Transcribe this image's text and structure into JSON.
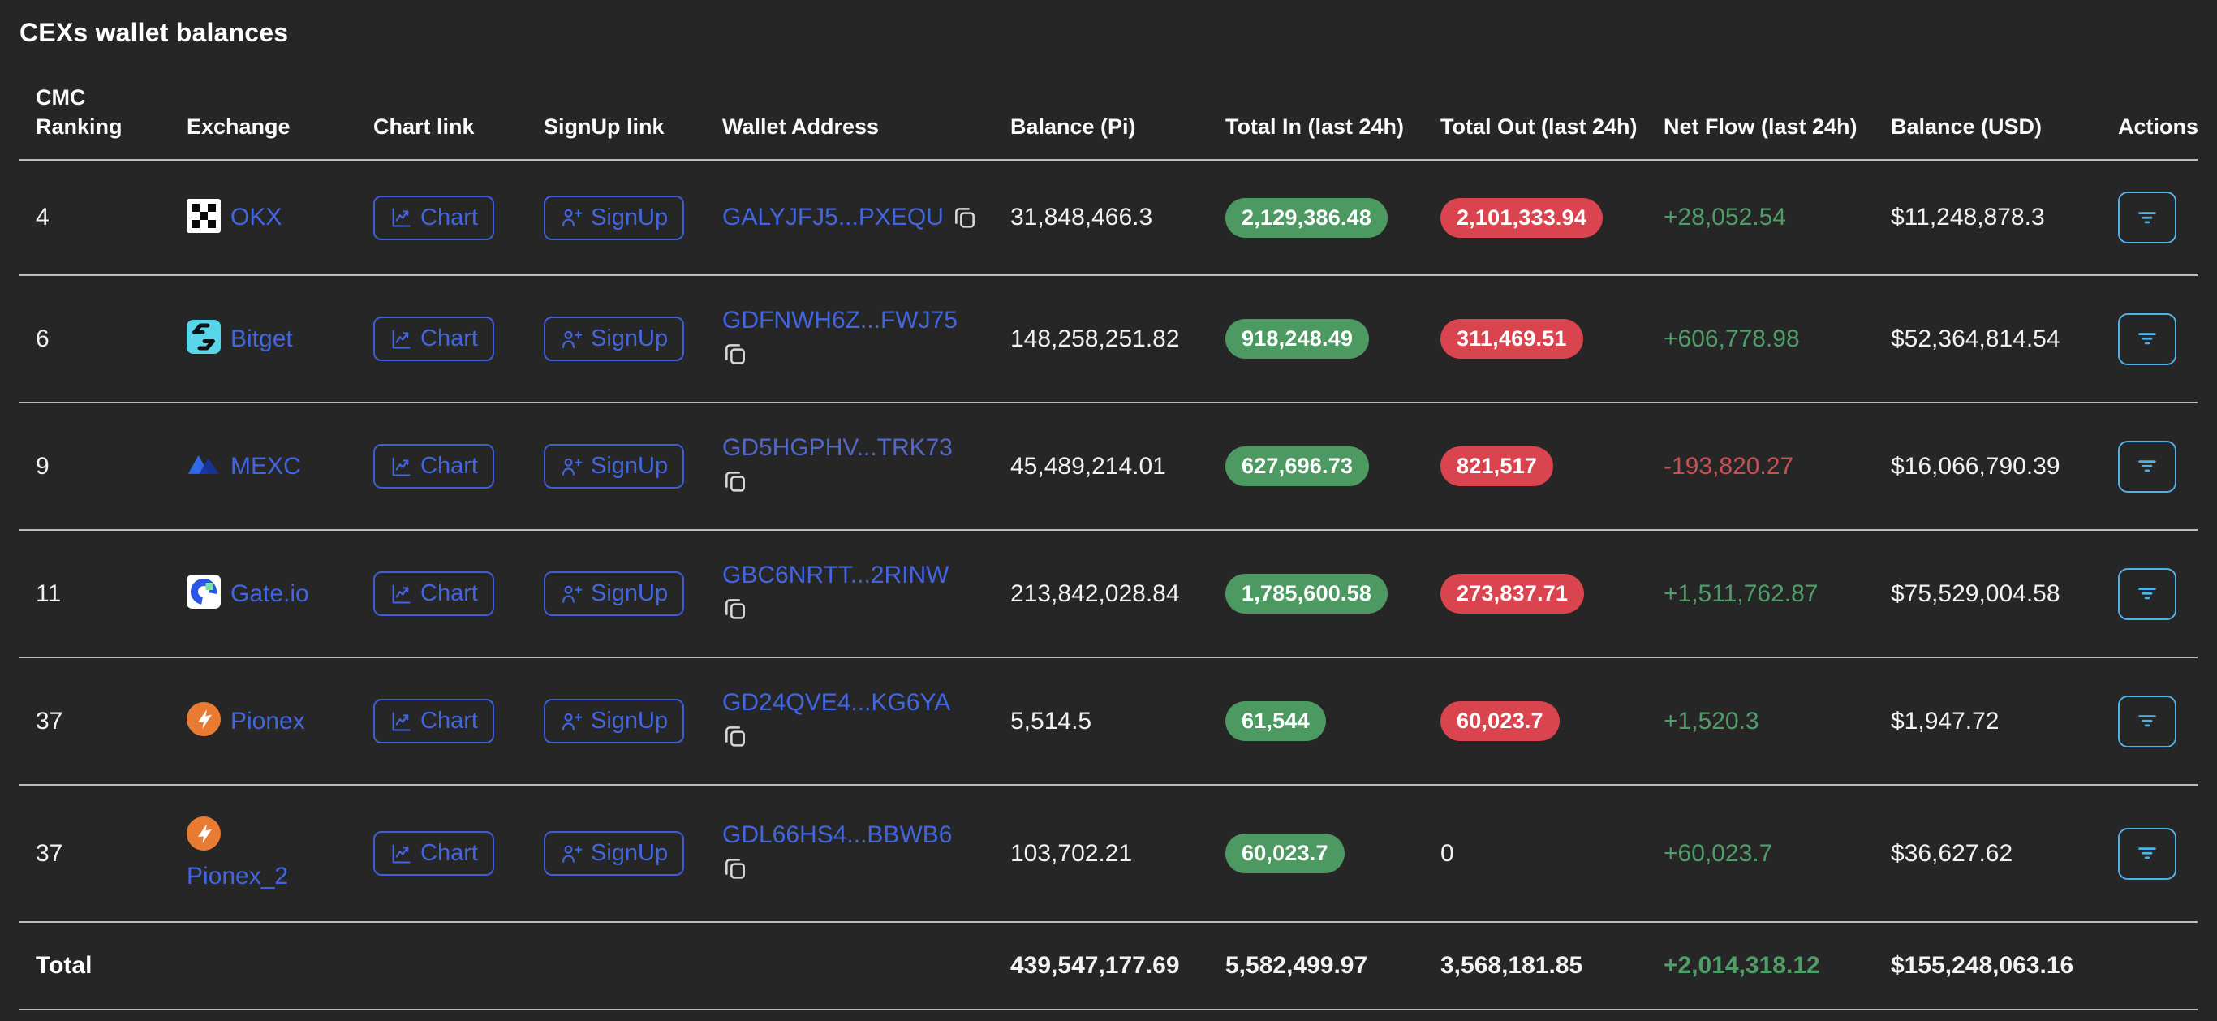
{
  "page": {
    "title": "CEXs wallet balances"
  },
  "colors": {
    "background": "#262626",
    "link_blue": "#4166e0",
    "badge_green": "#4c9a62",
    "badge_red": "#d9444e",
    "netflow_green": "#4f9e68",
    "netflow_red": "#c75055",
    "actions_border_blue": "#4fb3ea",
    "row_separator": "#bdbdbd"
  },
  "table": {
    "columns": [
      {
        "key": "ranking",
        "label": "CMC Ranking"
      },
      {
        "key": "exchange",
        "label": "Exchange"
      },
      {
        "key": "chart",
        "label": "Chart link"
      },
      {
        "key": "signup",
        "label": "SignUp link"
      },
      {
        "key": "wallet",
        "label": "Wallet Address"
      },
      {
        "key": "balance_pi",
        "label": "Balance (Pi)"
      },
      {
        "key": "total_in",
        "label": "Total In (last 24h)"
      },
      {
        "key": "total_out",
        "label": "Total Out (last 24h)"
      },
      {
        "key": "net_flow",
        "label": "Net Flow (last 24h)"
      },
      {
        "key": "balance_usd",
        "label": "Balance (USD)"
      },
      {
        "key": "actions",
        "label": "Actions"
      }
    ],
    "buttons": {
      "chart_label": "Chart",
      "signup_label": "SignUp"
    },
    "icons": {
      "chart_button": "line-chart-icon",
      "signup_button": "user-plus-icon",
      "wallet": "copy-icon",
      "actions": "filter-icon"
    },
    "rows": [
      {
        "ranking": "4",
        "exchange": "OKX",
        "logo": "okx",
        "wallet": "GALYJFJ5...PXEQU",
        "copy_inline": true,
        "balance_pi": "31,848,466.3",
        "total_in": "2,129,386.48",
        "total_out": "2,101,333.94",
        "total_out_badge": true,
        "net_flow": "+28,052.54",
        "net_flow_dir": "up",
        "balance_usd": "$11,248,878.3"
      },
      {
        "ranking": "6",
        "exchange": "Bitget",
        "logo": "bitget",
        "wallet": "GDFNWH6Z...FWJ75",
        "copy_inline": false,
        "balance_pi": "148,258,251.82",
        "total_in": "918,248.49",
        "total_out": "311,469.51",
        "total_out_badge": true,
        "net_flow": "+606,778.98",
        "net_flow_dir": "up",
        "balance_usd": "$52,364,814.54"
      },
      {
        "ranking": "9",
        "exchange": "MEXC",
        "logo": "mexc",
        "wallet": "GD5HGPHV...TRK73",
        "copy_inline": false,
        "wallet_muted": true,
        "balance_pi": "45,489,214.01",
        "total_in": "627,696.73",
        "total_out": "821,517",
        "total_out_badge": true,
        "net_flow": "-193,820.27",
        "net_flow_dir": "down",
        "balance_usd": "$16,066,790.39"
      },
      {
        "ranking": "11",
        "exchange": "Gate.io",
        "logo": "gateio",
        "wallet": "GBC6NRTT...2RINW",
        "copy_inline": false,
        "balance_pi": "213,842,028.84",
        "total_in": "1,785,600.58",
        "total_out": "273,837.71",
        "total_out_badge": true,
        "net_flow": "+1,511,762.87",
        "net_flow_dir": "up",
        "balance_usd": "$75,529,004.58"
      },
      {
        "ranking": "37",
        "exchange": "Pionex",
        "logo": "pionex",
        "wallet": "GD24QVE4...KG6YA",
        "copy_inline": false,
        "balance_pi": "5,514.5",
        "total_in": "61,544",
        "total_out": "60,023.7",
        "total_out_badge": true,
        "net_flow": "+1,520.3",
        "net_flow_dir": "up",
        "balance_usd": "$1,947.72"
      },
      {
        "ranking": "37",
        "exchange": "Pionex_2",
        "logo": "pionex",
        "stack": true,
        "wallet": "GDL66HS4...BBWB6",
        "copy_inline": false,
        "balance_pi": "103,702.21",
        "total_in": "60,023.7",
        "total_out": "0",
        "total_out_badge": false,
        "net_flow": "+60,023.7",
        "net_flow_dir": "up",
        "balance_usd": "$36,627.62"
      }
    ],
    "total": {
      "label": "Total",
      "balance_pi": "439,547,177.69",
      "total_in": "5,582,499.97",
      "total_out": "3,568,181.85",
      "net_flow": "+2,014,318.12",
      "net_flow_dir": "up",
      "balance_usd": "$155,248,063.16"
    }
  }
}
